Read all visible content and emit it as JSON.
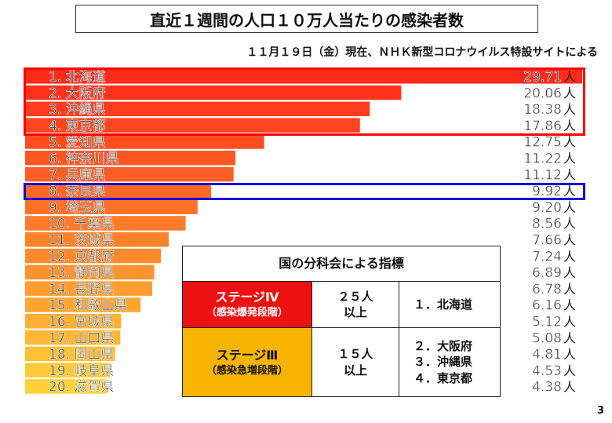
{
  "title": "直近１週間の人口１０万人当たりの感染者数",
  "subtitle": "１１月１９日（金）現在、ＮＨＫ新型コロナウイルス特設サイトによる",
  "page_number": "3",
  "unit_label": "人",
  "chart_data": {
    "type": "bar",
    "orientation": "horizontal",
    "categories": [
      "1. 北海道",
      "2. 大阪府",
      "3. 沖縄県",
      "4. 東京都",
      "5. 愛知県",
      "6. 神奈川県",
      "7. 兵庫県",
      "8. 奈良県",
      "9. 埼玉県",
      "10. 千葉県",
      "11. 茨城県",
      "12. 京都府",
      "13. 静岡県",
      "14. 長野県",
      "15. 和歌山県",
      "16. 宮城県",
      "17. 山口県",
      "18. 岡山県",
      "19. 岐阜県",
      "20. 滋賀県"
    ],
    "values": [
      29.71,
      20.06,
      18.38,
      17.86,
      12.75,
      11.22,
      11.12,
      9.92,
      9.2,
      8.56,
      7.66,
      7.24,
      6.89,
      6.78,
      6.16,
      5.12,
      5.08,
      4.81,
      4.53,
      4.38
    ],
    "value_labels": [
      "29.71",
      "20.06",
      "18.38",
      "17.86",
      "12.75",
      "11.22",
      "11.12",
      "9.92",
      "9.20",
      "8.56",
      "7.66",
      "7.24",
      "6.89",
      "6.78",
      "6.16",
      "5.12",
      "5.08",
      "4.81",
      "4.53",
      "4.38"
    ],
    "xlim": [
      0,
      29.71
    ],
    "colors": {
      "top": "#ff2a1a",
      "bottom": "#ffd23a",
      "highlight_red": "#ff0000",
      "highlight_blue": "#0000dd"
    }
  },
  "indicator_table": {
    "header": "国の分科会による指標",
    "rows": [
      {
        "stage": "ステージⅣ",
        "stage_note": "（感染爆発段階）",
        "threshold_line1": "２５人",
        "threshold_line2": "以上",
        "prefectures": [
          "１．北海道"
        ],
        "color": "#ee1111"
      },
      {
        "stage": "ステージⅢ",
        "stage_note": "（感染急増段階）",
        "threshold_line1": "１５人",
        "threshold_line2": "以上",
        "prefectures": [
          "２．大阪府",
          "３．沖縄県",
          "４．東京都"
        ],
        "color": "#f7b400"
      }
    ]
  }
}
